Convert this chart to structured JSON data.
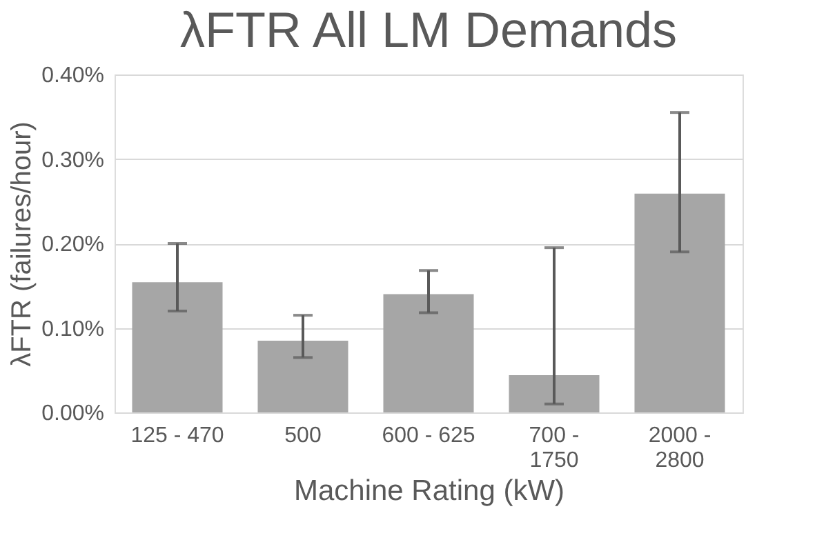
{
  "chart_data": {
    "type": "bar",
    "title": "λFTR All LM Demands",
    "xlabel": "Machine Rating (kW)",
    "ylabel": "λFTR (failures/hour)",
    "categories": [
      "125 - 470",
      "500",
      "600 - 625",
      "700 - 1750",
      "2000 - 2800"
    ],
    "values": [
      0.154,
      0.085,
      0.14,
      0.044,
      0.259
    ],
    "errors": [
      [
        0.12,
        0.2
      ],
      [
        0.065,
        0.115
      ],
      [
        0.118,
        0.168
      ],
      [
        0.01,
        0.195
      ],
      [
        0.19,
        0.355
      ]
    ],
    "color": "#a6a6a6",
    "ylim": [
      0,
      0.4
    ],
    "yticks": [
      {
        "value": 0,
        "label": "0.00%"
      },
      {
        "value": 0.1,
        "label": "0.10%"
      },
      {
        "value": 0.2,
        "label": "0.20%"
      },
      {
        "value": 0.3,
        "label": "0.30%"
      },
      {
        "value": 0.4,
        "label": "0.40%"
      }
    ],
    "grid": "y"
  }
}
